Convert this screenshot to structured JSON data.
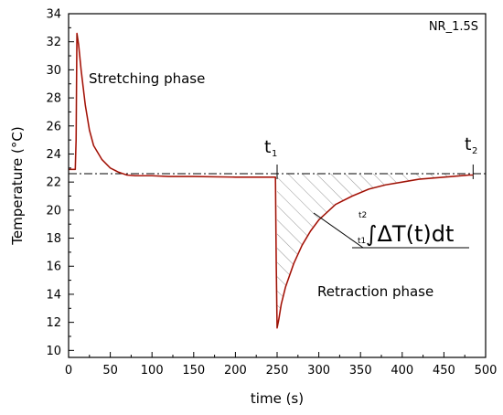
{
  "chart_data": {
    "type": "line",
    "title": "",
    "xlabel": "time (s)",
    "ylabel": "Temperature (°C)",
    "xlim": [
      0,
      500
    ],
    "ylim": [
      9.5,
      34
    ],
    "xticks": [
      0,
      50,
      100,
      150,
      200,
      250,
      300,
      350,
      400,
      450,
      500
    ],
    "yticks": [
      10,
      12,
      14,
      16,
      18,
      20,
      22,
      24,
      26,
      28,
      30,
      32,
      34
    ],
    "grid": false,
    "legend": "none",
    "sample_label": "NR_1.5S",
    "reference_line": {
      "y": 22.6,
      "style": "dash-dot",
      "color": "#000000"
    },
    "series": [
      {
        "color": "#d01010",
        "x": [
          0,
          8,
          9,
          10,
          12,
          15,
          20,
          25,
          30,
          40,
          50,
          60,
          70,
          80,
          90,
          100,
          120,
          150,
          200,
          248,
          249,
          250,
          252,
          255,
          260,
          270,
          280,
          290,
          300,
          320,
          340,
          360,
          380,
          400,
          420,
          440,
          460,
          480,
          485
        ],
        "y": [
          22.9,
          22.9,
          25.0,
          32.6,
          31.8,
          30.0,
          27.5,
          25.7,
          24.6,
          23.6,
          23.0,
          22.7,
          22.5,
          22.45,
          22.45,
          22.45,
          22.4,
          22.4,
          22.35,
          22.35,
          16.0,
          11.6,
          12.2,
          13.3,
          14.5,
          16.2,
          17.5,
          18.5,
          19.3,
          20.4,
          21.0,
          21.5,
          21.8,
          22.0,
          22.2,
          22.3,
          22.4,
          22.5,
          22.5
        ]
      }
    ],
    "annotations": [
      {
        "text": "Stretching phase",
        "x": 20,
        "y": 30
      },
      {
        "text": "Retraction phase",
        "x": 298,
        "y": 14
      },
      {
        "text": "t",
        "subscript": "1",
        "x": 250,
        "y": 22.6
      },
      {
        "text": "t",
        "subscript": "2",
        "x": 485,
        "y": 22.6
      },
      {
        "text": "∫ΔT(t)dt",
        "lower_limit": "t1",
        "upper_limit": "t2",
        "x": 400,
        "y": 18
      }
    ]
  }
}
